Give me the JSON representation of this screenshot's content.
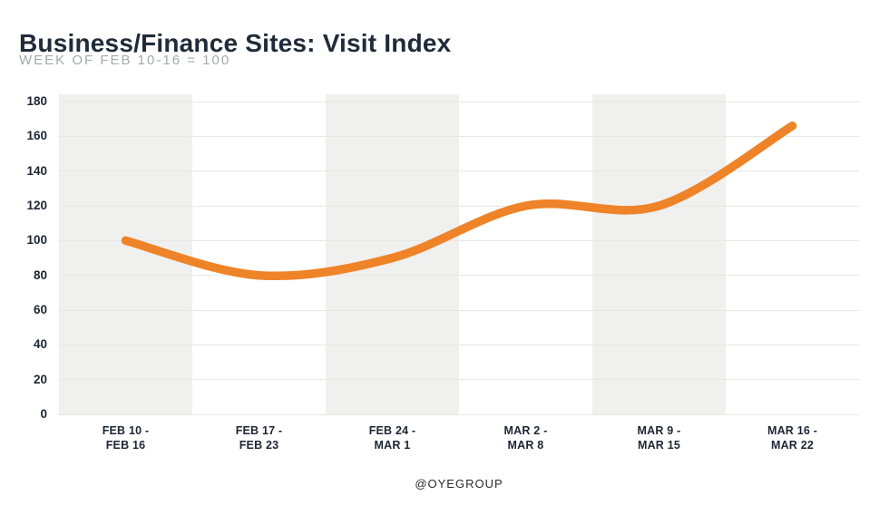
{
  "header": {
    "title": "Business/Finance Sites: Visit Index",
    "subtitle": "WEEK OF FEB 10-16 = 100"
  },
  "footer": {
    "credit": "@OYEGROUP"
  },
  "colors": {
    "accent_orange": "#ee8327",
    "title_text": "#202b3a",
    "subtitle_text": "#a5a9ae",
    "tick_text": "#1c2633",
    "band_fill": "#f0f0ef",
    "gridline": "#e7e7e5",
    "background": "#ffffff"
  },
  "chart_data": {
    "type": "line",
    "title": "Business/Finance Sites: Visit Index",
    "subtitle": "WEEK OF FEB 10-16 = 100",
    "series": [
      {
        "name": "Visit Index",
        "values": [
          100,
          80,
          90,
          120,
          120,
          166
        ],
        "color": "#ee8327"
      }
    ],
    "categories": [
      "FEB 10 - FEB 16",
      "FEB 17 - FEB 23",
      "FEB 24 - MAR 1",
      "MAR 2 - MAR 8",
      "MAR 9 - MAR 15",
      "MAR 16 - MAR 22"
    ],
    "category_labels": [
      [
        "FEB 10 -",
        "FEB 16"
      ],
      [
        "FEB 17 -",
        "FEB 23"
      ],
      [
        "FEB 24 -",
        "MAR 1"
      ],
      [
        "MAR 2 -",
        "MAR 8"
      ],
      [
        "MAR 9 -",
        "MAR 15"
      ],
      [
        "MAR 16 -",
        "MAR 22"
      ]
    ],
    "xlabel": "",
    "ylabel": "",
    "ylim": [
      0,
      180
    ],
    "yticks": [
      0,
      20,
      40,
      60,
      80,
      100,
      120,
      140,
      160,
      180
    ],
    "grid": "horizontal",
    "plot_bands": "alternating-gray-white",
    "legend": "none",
    "annotation": "@OYEGROUP"
  }
}
